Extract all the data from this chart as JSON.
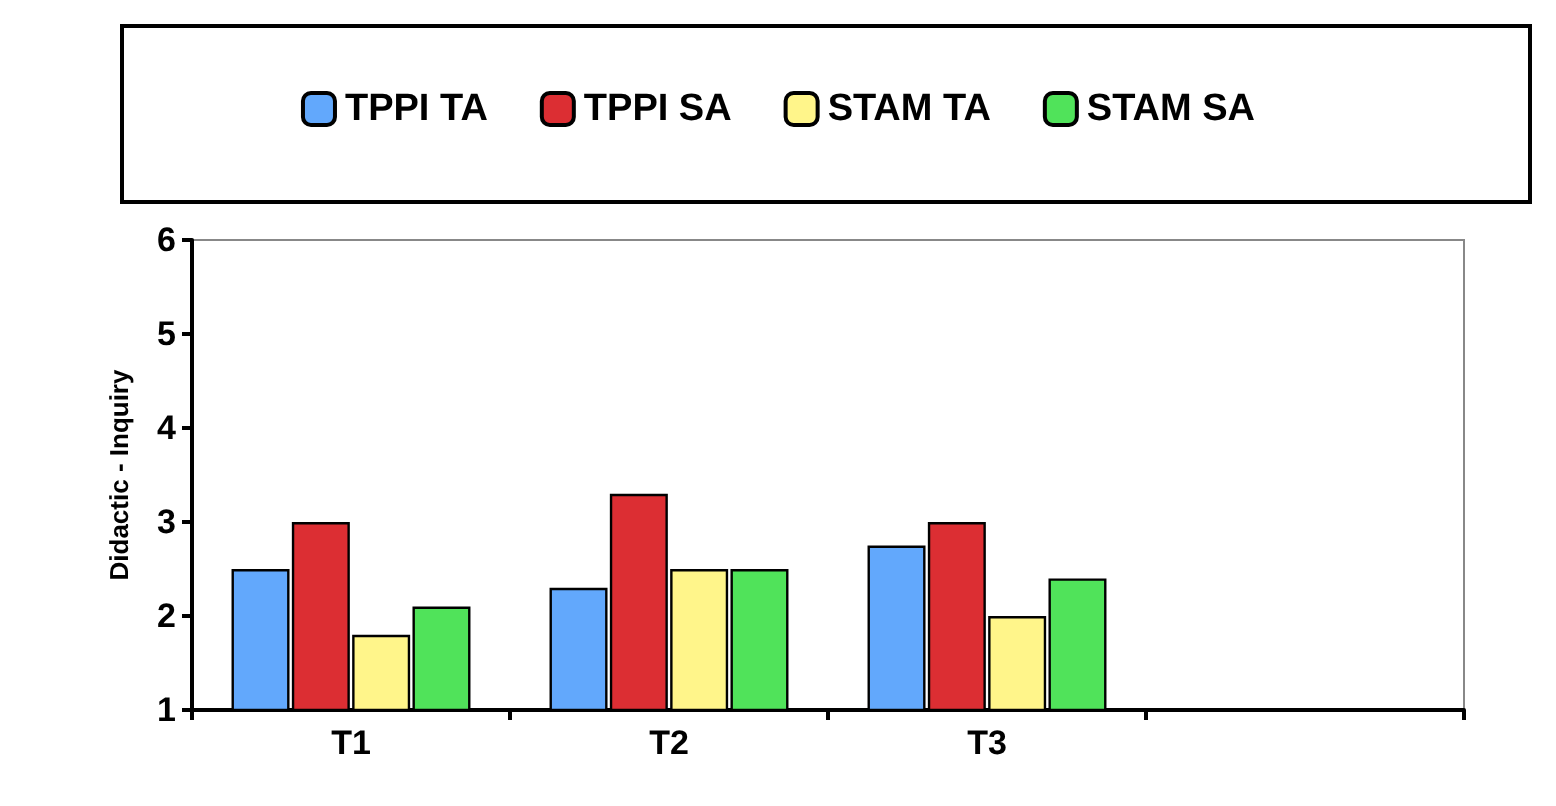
{
  "chart_data": {
    "type": "bar",
    "ylabel": "Didactic - Inquiry",
    "categories": [
      "T1",
      "T2",
      "T3",
      null
    ],
    "series": [
      {
        "name": "TPPI TA",
        "color": "#62a8fc",
        "values": [
          2.5,
          2.3,
          2.75,
          null
        ]
      },
      {
        "name": "TPPI SA",
        "color": "#dc2e33",
        "values": [
          3.0,
          3.3,
          3.0,
          null
        ]
      },
      {
        "name": "STAM TA",
        "color": "#fff58a",
        "values": [
          1.8,
          2.5,
          2.0,
          null
        ]
      },
      {
        "name": "STAM SA",
        "color": "#50e35a",
        "values": [
          2.1,
          2.5,
          2.4,
          null
        ]
      }
    ],
    "ylim": [
      1,
      6
    ],
    "yticks": [
      1,
      2,
      3,
      4,
      5,
      6
    ],
    "grid": false,
    "legend": "top"
  }
}
